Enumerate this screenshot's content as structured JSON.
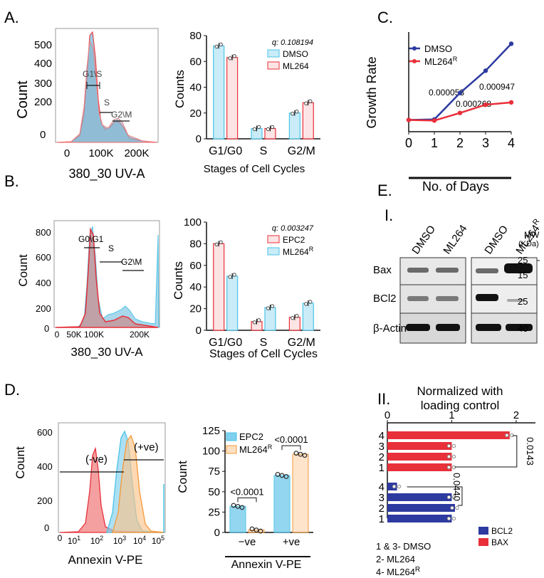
{
  "panels": {
    "A": "A.",
    "B": "B.",
    "C": "C.",
    "D": "D.",
    "E": "E.",
    "EI": "I.",
    "EII": "II."
  },
  "colors": {
    "red": "#e8303a",
    "lightblue": "#c9ecf8",
    "blue": "#2d3aa0",
    "cyan": "#4bc3e6",
    "orange": "#f59a3a",
    "lightorange": "#fde0c2",
    "pink": "#f08080"
  },
  "panelA": {
    "flow": {
      "ylabel": "Count",
      "xlabel": "380_30 UV-A",
      "yticks": [
        "500",
        "400",
        "300",
        "200",
        "0"
      ],
      "xticks": [
        "0",
        "100K",
        "200K"
      ],
      "gates": [
        "G1\\S",
        "S",
        "G2\\M"
      ]
    },
    "chart_data": {
      "type": "bar",
      "categories": [
        "G1/G0",
        "S",
        "G2/M"
      ],
      "series": [
        {
          "name": "DMSO",
          "values": [
            72,
            8,
            20
          ]
        },
        {
          "name": "ML264",
          "values": [
            63,
            8,
            28
          ]
        }
      ],
      "ylabel": "Counts",
      "xlabel": "Stages of Cell Cycles",
      "yticks": [
        "0",
        "20",
        "40",
        "60",
        "80"
      ],
      "ylim": [
        0,
        80
      ],
      "annotation": "q: 0.108194"
    }
  },
  "panelB": {
    "flow": {
      "ylabel": "Count",
      "xlabel": "380_30 UV-A",
      "yticks": [
        "800",
        "600",
        "400",
        "200",
        "0"
      ],
      "xticks": [
        "0",
        "50K",
        "100K",
        "200K"
      ],
      "gates": [
        "G0\\G1",
        "S",
        "G2\\M"
      ]
    },
    "chart_data": {
      "type": "bar",
      "categories": [
        "G1/G0",
        "S",
        "G2/M"
      ],
      "series": [
        {
          "name": "EPC2",
          "values": [
            80,
            8,
            12
          ]
        },
        {
          "name": "ML264R",
          "values": [
            50,
            21,
            25
          ]
        }
      ],
      "ylabel": "Counts",
      "xlabel": "Stages of Cell Cycles",
      "yticks": [
        "0",
        "20",
        "40",
        "60",
        "80",
        "100"
      ],
      "ylim": [
        0,
        100
      ],
      "annotation": "q: 0.003247"
    }
  },
  "panelC": {
    "chart_data": {
      "type": "line",
      "x": [
        0,
        1,
        2,
        3,
        4
      ],
      "series": [
        {
          "name": "DMSO",
          "values": [
            1.0,
            1.05,
            3.3,
            5.2,
            7.5
          ]
        },
        {
          "name": "ML264R",
          "values": [
            1.0,
            0.95,
            1.6,
            2.3,
            2.5
          ]
        }
      ],
      "ylabel": "Growth Rate",
      "xlabel": "No. of Days",
      "xticks": [
        "0",
        "1",
        "2",
        "3",
        "4"
      ],
      "annotations": [
        "0.000058",
        "0.000947",
        "0.000268"
      ]
    }
  },
  "panelD": {
    "flow": {
      "ylabel": "Count",
      "xlabel": "Annexin V-PE",
      "yticks": [
        "600",
        "400",
        "200",
        "0"
      ],
      "xticks": [
        "0",
        "10",
        "10",
        "10",
        "10",
        "10"
      ],
      "xexp": [
        "",
        "1",
        "2",
        "3",
        "4",
        "5"
      ],
      "gates": [
        "(-ve)",
        "(+ve)"
      ]
    },
    "chart_data": {
      "type": "bar",
      "categories": [
        "−ve",
        "+ve"
      ],
      "series": [
        {
          "name": "EPC2",
          "values": [
            32,
            70
          ]
        },
        {
          "name": "ML264R",
          "values": [
            3,
            96
          ]
        }
      ],
      "ylabel": "Count",
      "xlabel": "Annexin V-PE",
      "yticks": [
        "0",
        "25",
        "50",
        "75",
        "100",
        "125"
      ],
      "ylim": [
        0,
        125
      ],
      "pvalues": [
        "<0.0001",
        "<0.0001"
      ]
    }
  },
  "panelE": {
    "blot": {
      "lanes": [
        "DMSO",
        "ML264",
        "DMSO",
        "ML264"
      ],
      "lane4_sup": "R",
      "proteins": [
        "Bax",
        "BCl2",
        "β-Actin"
      ],
      "mw_title": "MW",
      "mw_unit": "(KDa)",
      "mw_markers": [
        "25",
        "15",
        "25",
        "40"
      ]
    },
    "chart_data": {
      "type": "bar",
      "title": "Normalized with loading control",
      "categories": [
        "4",
        "3",
        "2",
        "1"
      ],
      "series": [
        {
          "name": "BAX",
          "values": [
            1.9,
            1.0,
            1.0,
            1.0
          ]
        },
        {
          "name": "BCL2",
          "values": [
            0.15,
            1.0,
            1.05,
            1.0
          ]
        }
      ],
      "xticks": [
        "0",
        "1",
        "2"
      ],
      "xlim": [
        0,
        2.3
      ],
      "pvalues": [
        "0.0143",
        "0.0440"
      ]
    },
    "legend_note": [
      "1 & 3-   DMSO",
      "2- ML264",
      "4- ML264"
    ],
    "legend_note_sup": "R"
  }
}
